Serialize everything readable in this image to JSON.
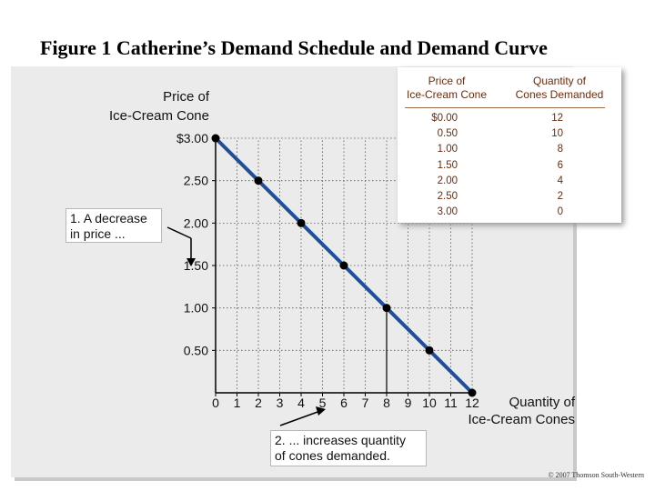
{
  "figure_title": "Figure 1 Catherine’s Demand Schedule and Demand Curve",
  "axis": {
    "y_label_line1": "Price of",
    "y_label_line2": "Ice-Cream Cone"
  },
  "x_label_line1": "Quantity of",
  "x_label_line2": "Ice-Cream Cones",
  "callouts": {
    "price_line1": "1. A decrease",
    "price_line2": "in price ...",
    "qty_line1": "2. ... increases quantity",
    "qty_line2": "of cones demanded."
  },
  "table": {
    "header_price_line1": "Price of",
    "header_price_line2": "Ice-Cream Cone",
    "header_qty_line1": "Quantity of",
    "header_qty_line2": "Cones Demanded",
    "rows": [
      {
        "price": "$0.00",
        "qty": "12"
      },
      {
        "price": "0.50",
        "qty": "10"
      },
      {
        "price": "1.00",
        "qty": "8"
      },
      {
        "price": "1.50",
        "qty": "6"
      },
      {
        "price": "2.00",
        "qty": "4"
      },
      {
        "price": "2.50",
        "qty": "2"
      },
      {
        "price": "3.00",
        "qty": "0"
      }
    ]
  },
  "copyright": "© 2007 Thomson South-Western",
  "colors": {
    "curve": "#1f4e9c",
    "point": "#000000",
    "table_text": "#6b2c0c"
  },
  "chart_data": {
    "type": "line",
    "title": "Figure 1 Catherine’s Demand Schedule and Demand Curve",
    "xlabel": "Quantity of Ice-Cream Cones",
    "ylabel": "Price of Ice-Cream Cone",
    "x": [
      0,
      2,
      4,
      6,
      8,
      10,
      12
    ],
    "series": [
      {
        "values": [
          3.0,
          2.5,
          2.0,
          1.5,
          1.0,
          0.5,
          0.0
        ]
      }
    ],
    "x_ticks": [
      "0",
      "1",
      "2",
      "3",
      "4",
      "5",
      "6",
      "7",
      "8",
      "9",
      "10",
      "11",
      "12"
    ],
    "y_ticks": [
      "$3.00",
      "2.50",
      "2.00",
      "1.50",
      "1.00",
      "0.50"
    ],
    "y_tick_values": [
      3.0,
      2.5,
      2.0,
      1.5,
      1.0,
      0.5
    ],
    "xlim": [
      0,
      12
    ],
    "ylim": [
      0,
      3
    ],
    "grid": "dotted guides from each point to the axes"
  }
}
